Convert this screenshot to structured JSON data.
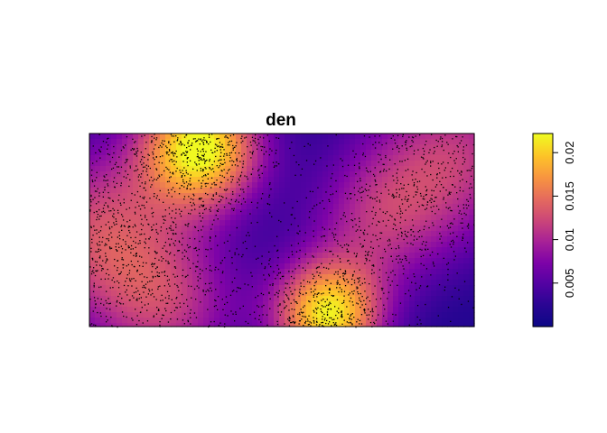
{
  "chart_data": {
    "type": "heatmap",
    "title": "den",
    "colorbar": {
      "range": [
        0,
        0.0222
      ],
      "ticks": [
        {
          "value": 0.005,
          "label": "0.005"
        },
        {
          "value": 0.01,
          "label": "0.01"
        },
        {
          "value": 0.015,
          "label": "0.015"
        },
        {
          "value": 0.02,
          "label": "0.02"
        }
      ],
      "colors": [
        "#0d0887",
        "#2a0593",
        "#5302a3",
        "#7e03a8",
        "#a82296",
        "#cc4778",
        "#e56b5d",
        "#f89540",
        "#fdc328",
        "#f0f921"
      ]
    },
    "density_peaks": [
      {
        "x": 0.29,
        "y": 0.93,
        "value": 0.0222,
        "spread": 0.11
      },
      {
        "x": 0.62,
        "y": 0.06,
        "value": 0.021,
        "spread": 0.1
      },
      {
        "x": 0.02,
        "y": 0.5,
        "value": 0.012,
        "spread": 0.16
      },
      {
        "x": 0.95,
        "y": 0.88,
        "value": 0.011,
        "spread": 0.16
      },
      {
        "x": 0.75,
        "y": 0.55,
        "value": 0.009,
        "spread": 0.13
      },
      {
        "x": 0.2,
        "y": 0.1,
        "value": 0.01,
        "spread": 0.14
      }
    ],
    "points": "black dots marking point locations",
    "axes_shown": false
  }
}
